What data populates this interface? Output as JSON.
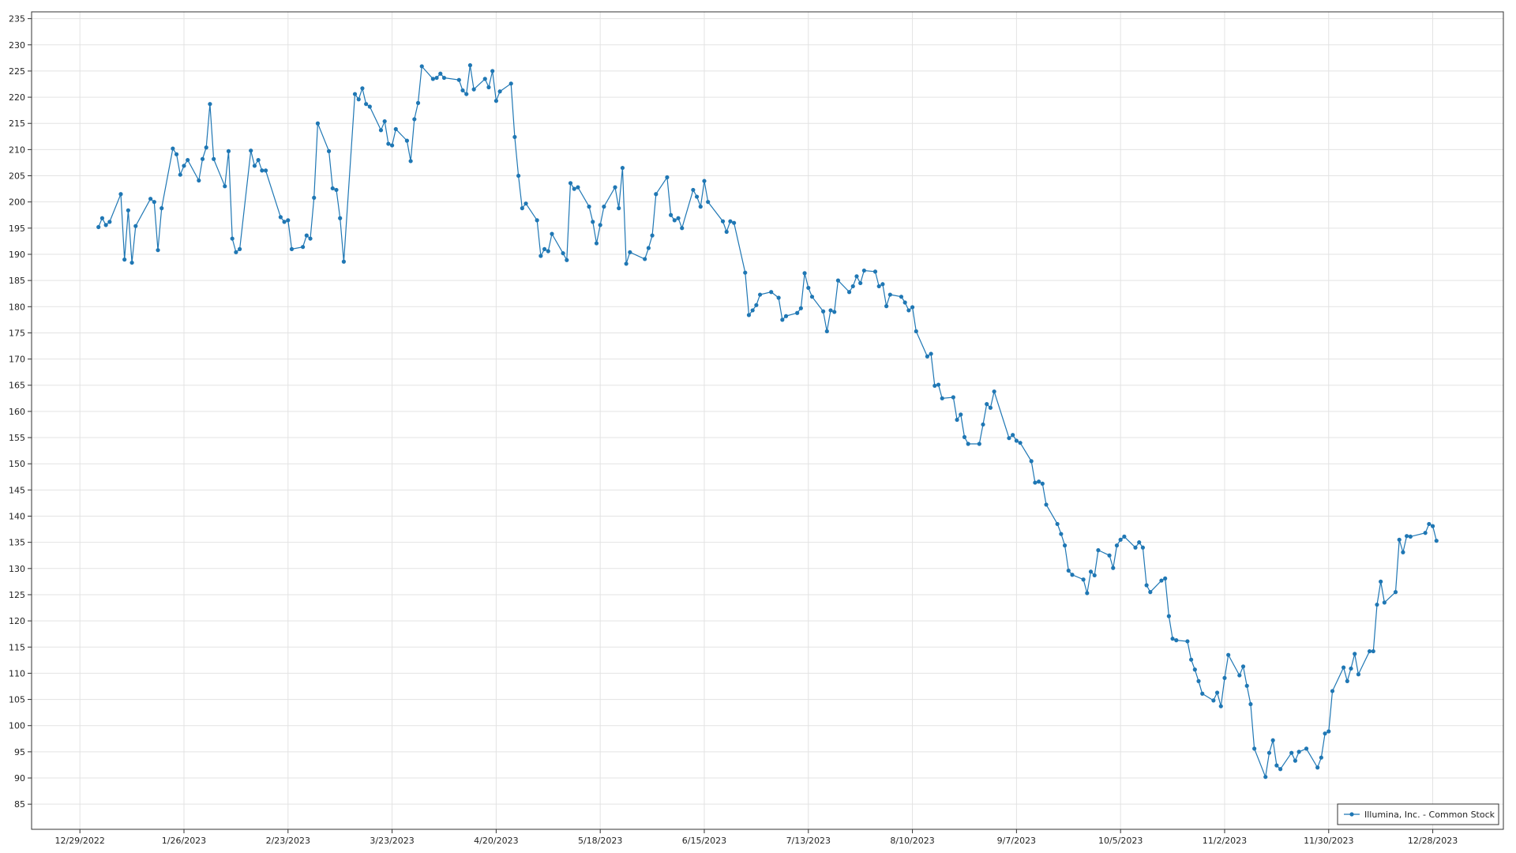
{
  "chart_data": {
    "type": "line",
    "x": [
      "1/3/2023",
      "1/4/2023",
      "1/5/2023",
      "1/6/2023",
      "1/9/2023",
      "1/10/2023",
      "1/11/2023",
      "1/12/2023",
      "1/13/2023",
      "1/17/2023",
      "1/18/2023",
      "1/19/2023",
      "1/20/2023",
      "1/23/2023",
      "1/24/2023",
      "1/25/2023",
      "1/26/2023",
      "1/27/2023",
      "1/30/2023",
      "1/31/2023",
      "2/1/2023",
      "2/2/2023",
      "2/3/2023",
      "2/6/2023",
      "2/7/2023",
      "2/8/2023",
      "2/9/2023",
      "2/10/2023",
      "2/13/2023",
      "2/14/2023",
      "2/15/2023",
      "2/16/2023",
      "2/17/2023",
      "2/21/2023",
      "2/22/2023",
      "2/23/2023",
      "2/24/2023",
      "2/27/2023",
      "2/28/2023",
      "3/1/2023",
      "3/2/2023",
      "3/3/2023",
      "3/6/2023",
      "3/7/2023",
      "3/8/2023",
      "3/9/2023",
      "3/10/2023",
      "3/13/2023",
      "3/14/2023",
      "3/15/2023",
      "3/16/2023",
      "3/17/2023",
      "3/20/2023",
      "3/21/2023",
      "3/22/2023",
      "3/23/2023",
      "3/24/2023",
      "3/27/2023",
      "3/28/2023",
      "3/29/2023",
      "3/30/2023",
      "3/31/2023",
      "4/3/2023",
      "4/4/2023",
      "4/5/2023",
      "4/6/2023",
      "4/10/2023",
      "4/11/2023",
      "4/12/2023",
      "4/13/2023",
      "4/14/2023",
      "4/17/2023",
      "4/18/2023",
      "4/19/2023",
      "4/20/2023",
      "4/21/2023",
      "4/24/2023",
      "4/25/2023",
      "4/26/2023",
      "4/27/2023",
      "4/28/2023",
      "5/1/2023",
      "5/2/2023",
      "5/3/2023",
      "5/4/2023",
      "5/5/2023",
      "5/8/2023",
      "5/9/2023",
      "5/10/2023",
      "5/11/2023",
      "5/12/2023",
      "5/15/2023",
      "5/16/2023",
      "5/17/2023",
      "5/18/2023",
      "5/19/2023",
      "5/22/2023",
      "5/23/2023",
      "5/24/2023",
      "5/25/2023",
      "5/26/2023",
      "5/30/2023",
      "5/31/2023",
      "6/1/2023",
      "6/2/2023",
      "6/5/2023",
      "6/6/2023",
      "6/7/2023",
      "6/8/2023",
      "6/9/2023",
      "6/12/2023",
      "6/13/2023",
      "6/14/2023",
      "6/15/2023",
      "6/16/2023",
      "6/20/2023",
      "6/21/2023",
      "6/22/2023",
      "6/23/2023",
      "6/26/2023",
      "6/27/2023",
      "6/28/2023",
      "6/29/2023",
      "6/30/2023",
      "7/3/2023",
      "7/5/2023",
      "7/6/2023",
      "7/7/2023",
      "7/10/2023",
      "7/11/2023",
      "7/12/2023",
      "7/13/2023",
      "7/14/2023",
      "7/17/2023",
      "7/18/2023",
      "7/19/2023",
      "7/20/2023",
      "7/21/2023",
      "7/24/2023",
      "7/25/2023",
      "7/26/2023",
      "7/27/2023",
      "7/28/2023",
      "7/31/2023",
      "8/1/2023",
      "8/2/2023",
      "8/3/2023",
      "8/4/2023",
      "8/7/2023",
      "8/8/2023",
      "8/9/2023",
      "8/10/2023",
      "8/11/2023",
      "8/14/2023",
      "8/15/2023",
      "8/16/2023",
      "8/17/2023",
      "8/18/2023",
      "8/21/2023",
      "8/22/2023",
      "8/23/2023",
      "8/24/2023",
      "8/25/2023",
      "8/28/2023",
      "8/29/2023",
      "8/30/2023",
      "8/31/2023",
      "9/1/2023",
      "9/5/2023",
      "9/6/2023",
      "9/7/2023",
      "9/8/2023",
      "9/11/2023",
      "9/12/2023",
      "9/13/2023",
      "9/14/2023",
      "9/15/2023",
      "9/18/2023",
      "9/19/2023",
      "9/20/2023",
      "9/21/2023",
      "9/22/2023",
      "9/25/2023",
      "9/26/2023",
      "9/27/2023",
      "9/28/2023",
      "9/29/2023",
      "10/2/2023",
      "10/3/2023",
      "10/4/2023",
      "10/5/2023",
      "10/6/2023",
      "10/9/2023",
      "10/10/2023",
      "10/11/2023",
      "10/12/2023",
      "10/13/2023",
      "10/16/2023",
      "10/17/2023",
      "10/18/2023",
      "10/19/2023",
      "10/20/2023",
      "10/23/2023",
      "10/24/2023",
      "10/25/2023",
      "10/26/2023",
      "10/27/2023",
      "10/30/2023",
      "10/31/2023",
      "11/1/2023",
      "11/2/2023",
      "11/3/2023",
      "11/6/2023",
      "11/7/2023",
      "11/8/2023",
      "11/9/2023",
      "11/10/2023",
      "11/13/2023",
      "11/14/2023",
      "11/15/2023",
      "11/16/2023",
      "11/17/2023",
      "11/20/2023",
      "11/21/2023",
      "11/22/2023",
      "11/24/2023",
      "11/27/2023",
      "11/28/2023",
      "11/29/2023",
      "11/30/2023",
      "12/1/2023",
      "12/4/2023",
      "12/5/2023",
      "12/6/2023",
      "12/7/2023",
      "12/8/2023",
      "12/11/2023",
      "12/12/2023",
      "12/13/2023",
      "12/14/2023",
      "12/15/2023",
      "12/18/2023",
      "12/19/2023",
      "12/20/2023",
      "12/21/2023",
      "12/22/2023",
      "12/26/2023",
      "12/27/2023",
      "12/28/2023",
      "12/29/2023"
    ],
    "series": [
      {
        "name": "Illumina, Inc. - Common Stock",
        "color": "#1f77b4",
        "values": [
          195.2,
          196.9,
          195.6,
          196.2,
          201.5,
          189,
          198.4,
          188.4,
          195.4,
          200.6,
          200,
          190.8,
          198.8,
          210.2,
          209.1,
          205.2,
          206.9,
          208,
          204.1,
          208.2,
          210.4,
          218.7,
          208.2,
          203,
          209.7,
          193,
          190.4,
          191,
          209.8,
          206.9,
          208,
          206,
          206,
          197.1,
          196.2,
          196.5,
          191,
          191.4,
          193.6,
          193,
          200.8,
          215,
          209.7,
          202.6,
          202.3,
          196.9,
          188.6,
          220.6,
          219.6,
          221.7,
          218.7,
          218.2,
          213.7,
          215.4,
          211.1,
          210.8,
          213.9,
          211.7,
          207.8,
          215.8,
          218.9,
          225.9,
          223.5,
          223.7,
          224.5,
          223.7,
          223.3,
          221.3,
          220.6,
          226.1,
          221.5,
          223.5,
          221.9,
          225,
          219.3,
          221.1,
          222.6,
          212.4,
          205,
          198.8,
          199.7,
          196.5,
          189.7,
          191,
          190.6,
          193.9,
          190.2,
          188.9,
          203.6,
          202.5,
          202.8,
          199.1,
          196.2,
          192.1,
          195.6,
          199.1,
          202.8,
          198.8,
          206.5,
          188.2,
          190.4,
          189.1,
          191.2,
          193.6,
          201.5,
          204.7,
          197.5,
          196.5,
          196.9,
          195,
          202.3,
          201,
          199.1,
          204,
          200,
          196.3,
          194.3,
          196.3,
          196,
          186.5,
          178.4,
          179.3,
          180.3,
          182.3,
          182.8,
          181.7,
          177.5,
          178.2,
          178.8,
          179.7,
          186.4,
          183.6,
          181.9,
          179.1,
          175.3,
          179.3,
          179,
          185,
          182.8,
          183.9,
          185.8,
          184.5,
          186.9,
          186.7,
          183.9,
          184.3,
          180.1,
          182.3,
          181.9,
          180.8,
          179.3,
          179.9,
          175.3,
          170.5,
          171,
          164.9,
          165.1,
          162.5,
          162.7,
          158.4,
          159.4,
          155.1,
          153.8,
          153.8,
          157.5,
          161.4,
          160.7,
          163.8,
          154.9,
          155.5,
          154.4,
          154,
          150.5,
          146.4,
          146.6,
          146.2,
          142.2,
          138.5,
          136.6,
          134.4,
          129.6,
          128.8,
          127.9,
          125.3,
          129.4,
          128.7,
          133.5,
          132.5,
          130.1,
          134.4,
          135.5,
          136.1,
          134,
          135,
          134,
          126.8,
          125.5,
          127.7,
          128.1,
          120.9,
          116.6,
          116.3,
          116.1,
          112.6,
          110.7,
          108.5,
          106.1,
          104.8,
          106.3,
          103.7,
          109.1,
          113.5,
          109.6,
          111.3,
          107.6,
          104.1,
          95.6,
          90.2,
          94.8,
          97.2,
          92.4,
          91.7,
          94.8,
          93.3,
          95,
          95.6,
          92,
          93.9,
          98.5,
          98.9,
          106.6,
          111.1,
          108.5,
          110.9,
          113.7,
          109.8,
          114.2,
          114.2,
          123.1,
          127.5,
          123.5,
          125.5,
          135.5,
          133.1,
          136.2,
          136.1,
          136.8,
          138.5,
          138.1,
          135.3
        ]
      }
    ],
    "xlim": [
      "12/16/2022",
      "1/16/2024"
    ],
    "xticks": [
      "12/29/2022",
      "1/26/2023",
      "2/23/2023",
      "3/23/2023",
      "4/20/2023",
      "5/18/2023",
      "6/15/2023",
      "7/13/2023",
      "8/10/2023",
      "9/7/2023",
      "10/5/2023",
      "11/2/2023",
      "11/30/2023",
      "12/28/2023"
    ],
    "ylim": [
      80.2,
      236.3
    ],
    "yticks": [
      85,
      90,
      95,
      100,
      105,
      110,
      115,
      120,
      125,
      130,
      135,
      140,
      145,
      150,
      155,
      160,
      165,
      170,
      175,
      180,
      185,
      190,
      195,
      200,
      205,
      210,
      215,
      220,
      225,
      230,
      235
    ],
    "grid": true,
    "legend": "lower right"
  }
}
